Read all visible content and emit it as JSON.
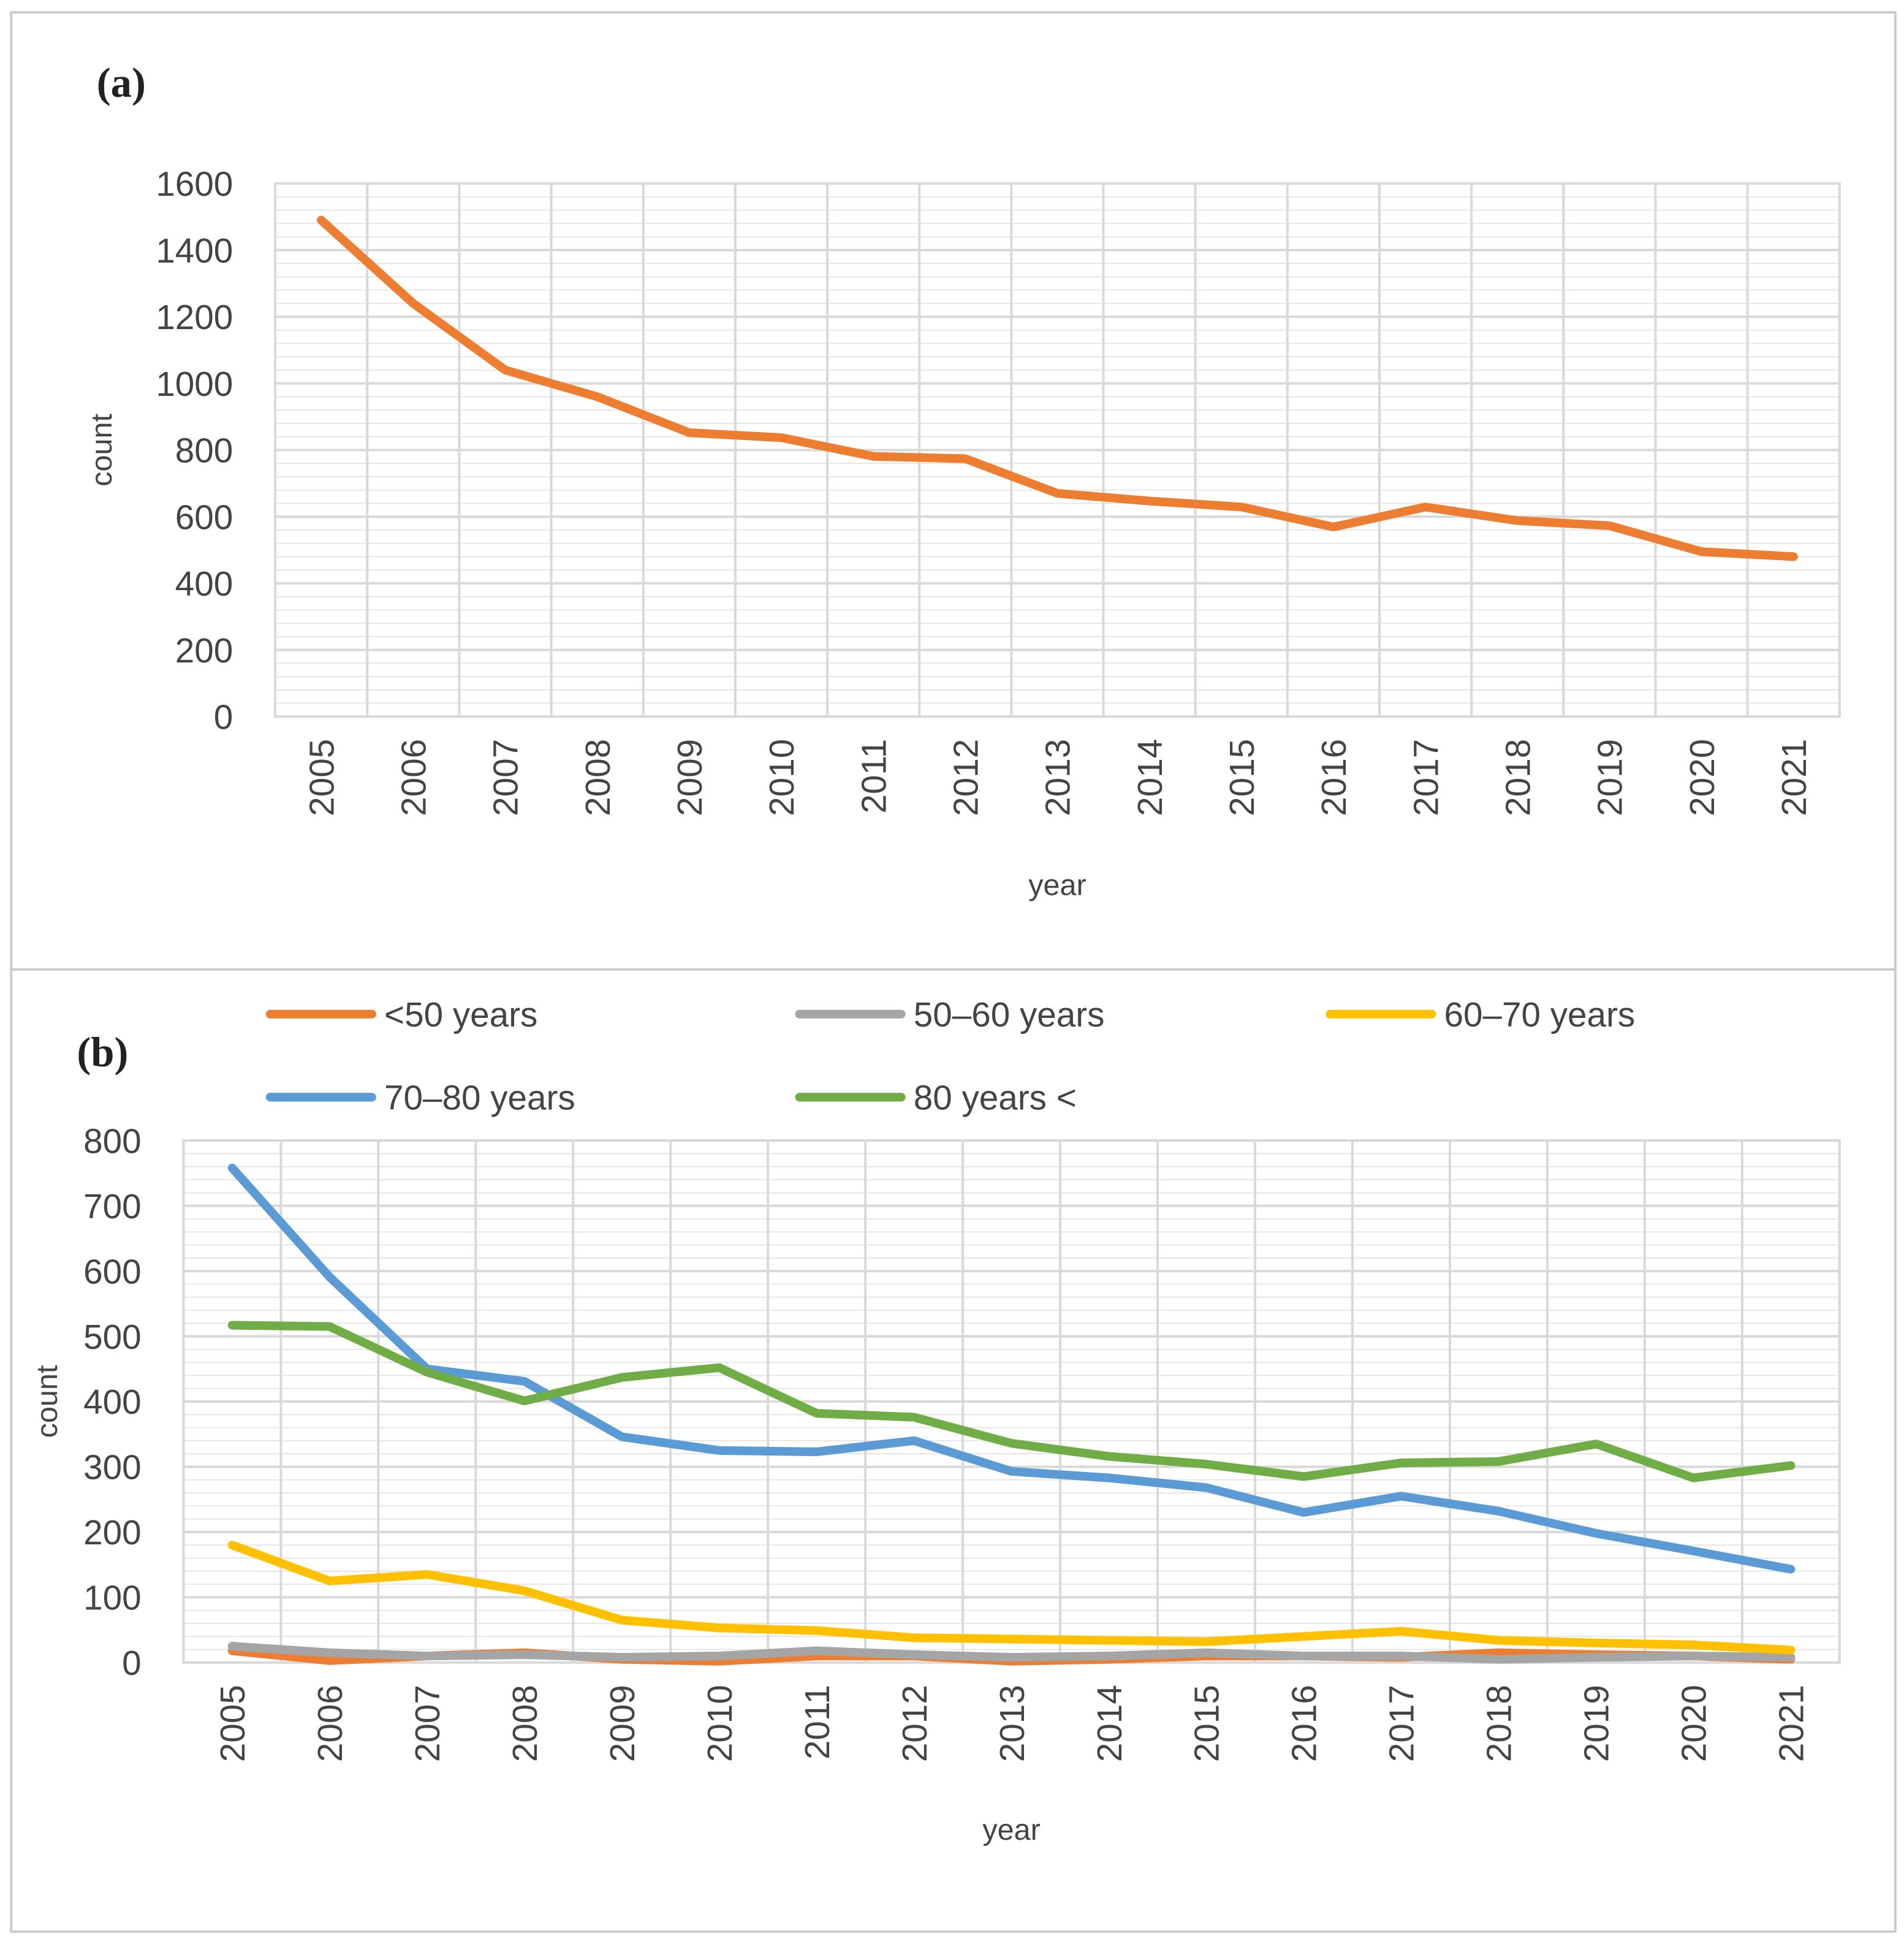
{
  "chart_data": [
    {
      "type": "line",
      "panel_label": "(a)",
      "xlabel": "year",
      "ylabel": "count",
      "ylim": [
        0,
        1600
      ],
      "yticks": [
        0,
        200,
        400,
        600,
        800,
        1000,
        1200,
        1400,
        1600
      ],
      "grid": true,
      "categories": [
        "2005",
        "2006",
        "2007",
        "2008",
        "2009",
        "2010",
        "2011",
        "2012",
        "2013",
        "2014",
        "2015",
        "2016",
        "2017",
        "2018",
        "2019",
        "2020",
        "2021"
      ],
      "series": [
        {
          "name": "count",
          "color": "#ED7D31",
          "values": [
            1490,
            1240,
            1040,
            960,
            852,
            837,
            781,
            774,
            670,
            647,
            629,
            569,
            629,
            588,
            573,
            495,
            480
          ]
        }
      ]
    },
    {
      "type": "line",
      "panel_label": "(b)",
      "xlabel": "year",
      "ylabel": "count",
      "ylim": [
        0,
        800
      ],
      "yticks": [
        0,
        100,
        200,
        300,
        400,
        500,
        600,
        700,
        800
      ],
      "grid": true,
      "legend_position": "top",
      "categories": [
        "2005",
        "2006",
        "2007",
        "2008",
        "2009",
        "2010",
        "2011",
        "2012",
        "2013",
        "2014",
        "2015",
        "2016",
        "2017",
        "2018",
        "2019",
        "2020",
        "2021"
      ],
      "series": [
        {
          "name": "<50 years",
          "color": "#ED7D31",
          "values": [
            18,
            3,
            10,
            15,
            5,
            2,
            10,
            10,
            2,
            5,
            10,
            10,
            8,
            15,
            12,
            10,
            5
          ]
        },
        {
          "name": "50–60 years",
          "color": "#A5A5A5",
          "values": [
            25,
            15,
            10,
            12,
            8,
            10,
            18,
            12,
            8,
            10,
            15,
            10,
            10,
            5,
            8,
            10,
            8
          ]
        },
        {
          "name": "60–70 years",
          "color": "#FFC000",
          "values": [
            180,
            125,
            135,
            110,
            65,
            53,
            49,
            38,
            36,
            34,
            32,
            40,
            48,
            34,
            30,
            27,
            19
          ]
        },
        {
          "name": "70–80 years",
          "color": "#5B9BD5",
          "values": [
            758,
            591,
            450,
            431,
            346,
            325,
            323,
            340,
            293,
            283,
            268,
            230,
            255,
            232,
            198,
            171,
            143
          ]
        },
        {
          "name": "80 years <",
          "color": "#70AD47",
          "values": [
            517,
            515,
            445,
            401,
            437,
            452,
            382,
            376,
            336,
            316,
            304,
            285,
            306,
            308,
            335,
            283,
            302
          ]
        }
      ]
    }
  ]
}
